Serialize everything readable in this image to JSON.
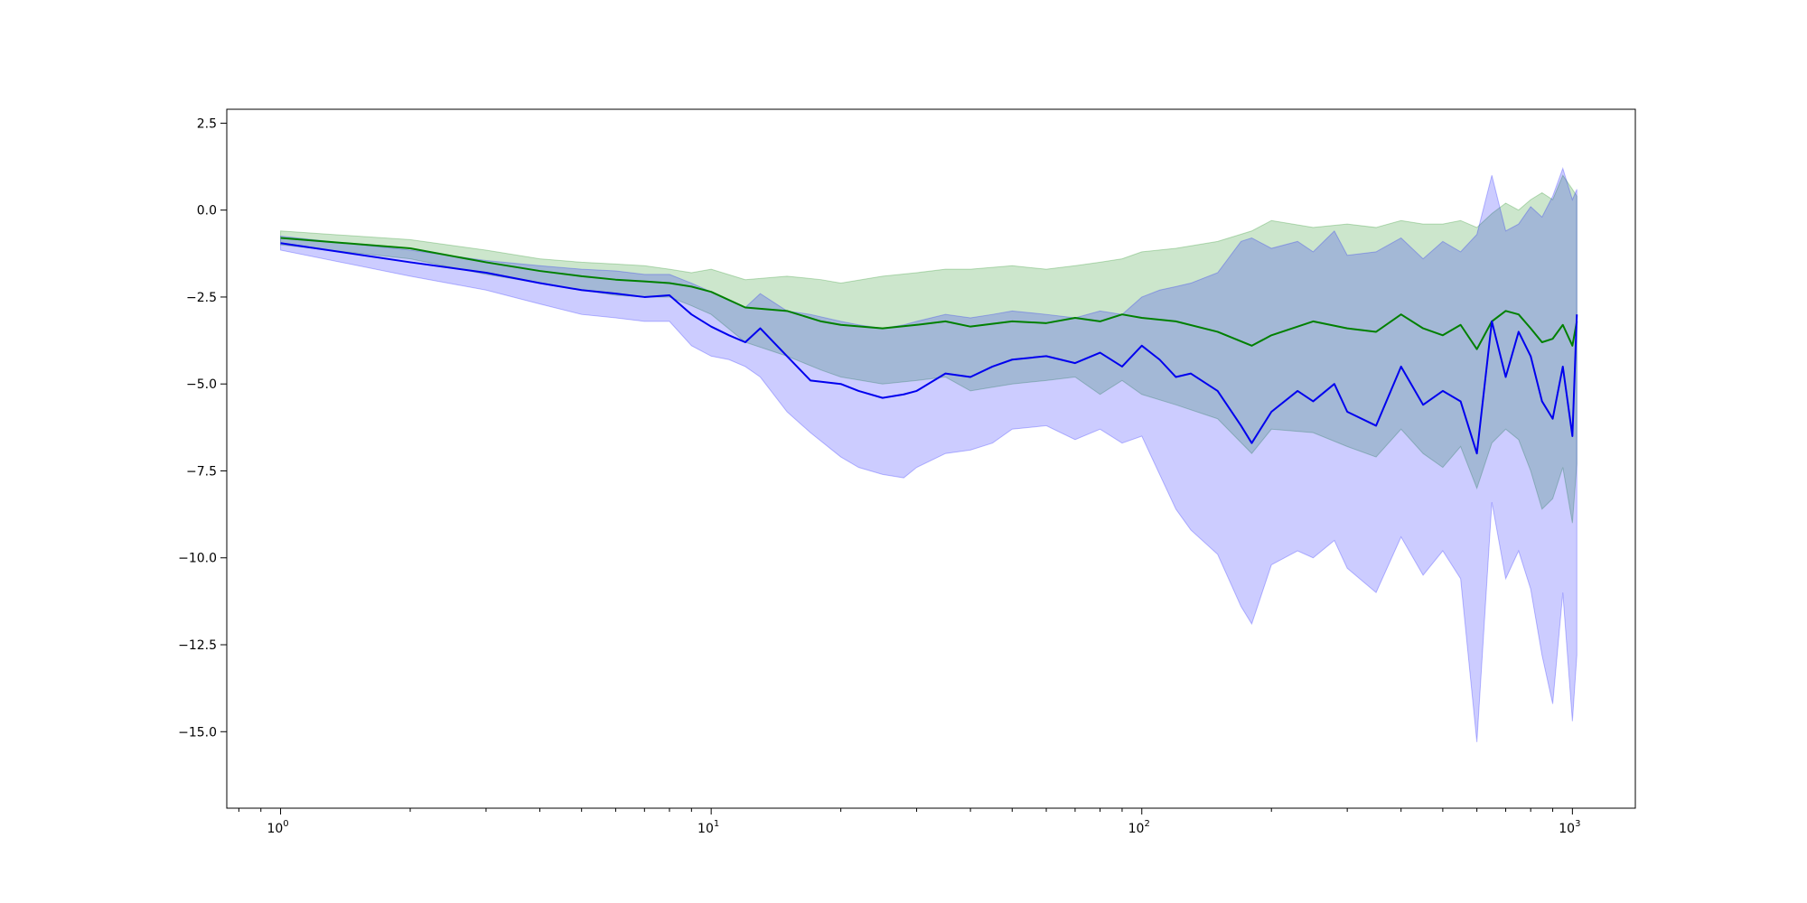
{
  "chart_data": {
    "type": "line",
    "title": "",
    "xlabel": "",
    "ylabel": "",
    "xscale": "log",
    "xlim": [
      0.75,
      1400
    ],
    "ylim": [
      -17.2,
      2.9
    ],
    "grid": false,
    "legend": "none",
    "x_ticks": [
      {
        "base": "10",
        "exp": "0",
        "value": 1
      },
      {
        "base": "10",
        "exp": "1",
        "value": 10
      },
      {
        "base": "10",
        "exp": "2",
        "value": 100
      },
      {
        "base": "10",
        "exp": "3",
        "value": 1000
      }
    ],
    "y_ticks": [
      {
        "label": "2.5",
        "value": 2.5
      },
      {
        "label": "0.0",
        "value": 0.0
      },
      {
        "label": "−2.5",
        "value": -2.5
      },
      {
        "label": "−5.0",
        "value": -5.0
      },
      {
        "label": "−7.5",
        "value": -7.5
      },
      {
        "label": "−10.0",
        "value": -10.0
      },
      {
        "label": "−12.5",
        "value": -12.5
      },
      {
        "label": "−15.0",
        "value": -15.0
      }
    ],
    "series": [
      {
        "color": "#008000",
        "band_color": "#008000",
        "band_opacity": 0.2,
        "x": [
          1,
          2,
          3,
          4,
          5,
          6,
          7,
          8,
          9,
          10,
          12,
          15,
          18,
          20,
          25,
          30,
          35,
          40,
          50,
          60,
          70,
          80,
          90,
          100,
          120,
          150,
          180,
          200,
          250,
          300,
          350,
          400,
          450,
          500,
          550,
          600,
          650,
          700,
          750,
          800,
          850,
          900,
          950,
          1000,
          1024
        ],
        "y": [
          -0.8,
          -1.1,
          -1.5,
          -1.75,
          -1.9,
          -2.0,
          -2.05,
          -2.1,
          -2.2,
          -2.35,
          -2.8,
          -2.9,
          -3.2,
          -3.3,
          -3.4,
          -3.3,
          -3.2,
          -3.35,
          -3.2,
          -3.25,
          -3.1,
          -3.2,
          -3.0,
          -3.1,
          -3.2,
          -3.5,
          -3.9,
          -3.6,
          -3.2,
          -3.4,
          -3.5,
          -3.0,
          -3.4,
          -3.6,
          -3.3,
          -4.0,
          -3.2,
          -2.9,
          -3.0,
          -3.4,
          -3.8,
          -3.7,
          -3.3,
          -3.9,
          -3.2
        ],
        "lower": [
          -1.0,
          -1.4,
          -1.85,
          -2.1,
          -2.3,
          -2.45,
          -2.5,
          -2.5,
          -2.75,
          -3.0,
          -3.8,
          -4.2,
          -4.6,
          -4.8,
          -5.0,
          -4.9,
          -4.8,
          -5.2,
          -5.0,
          -4.9,
          -4.8,
          -5.3,
          -4.9,
          -5.3,
          -5.6,
          -6.0,
          -7.0,
          -6.3,
          -6.4,
          -6.8,
          -7.1,
          -6.3,
          -7.0,
          -7.4,
          -6.8,
          -8.0,
          -6.7,
          -6.3,
          -6.6,
          -7.5,
          -8.6,
          -8.3,
          -7.4,
          -9.0,
          -7.3
        ],
        "upper": [
          -0.6,
          -0.85,
          -1.15,
          -1.4,
          -1.5,
          -1.55,
          -1.6,
          -1.7,
          -1.8,
          -1.7,
          -2.0,
          -1.9,
          -2.0,
          -2.1,
          -1.9,
          -1.8,
          -1.7,
          -1.7,
          -1.6,
          -1.7,
          -1.6,
          -1.5,
          -1.4,
          -1.2,
          -1.1,
          -0.9,
          -0.6,
          -0.3,
          -0.5,
          -0.4,
          -0.5,
          -0.3,
          -0.4,
          -0.4,
          -0.3,
          -0.5,
          -0.1,
          0.2,
          0.0,
          0.3,
          0.5,
          0.3,
          1.0,
          0.6,
          0.4
        ]
      },
      {
        "color": "#0000ee",
        "band_color": "#0000ff",
        "band_opacity": 0.2,
        "x": [
          1,
          2,
          3,
          4,
          5,
          6,
          7,
          8,
          9,
          10,
          11,
          12,
          13,
          15,
          17,
          20,
          22,
          25,
          28,
          30,
          35,
          40,
          45,
          50,
          60,
          70,
          80,
          90,
          100,
          110,
          120,
          130,
          150,
          170,
          180,
          200,
          230,
          250,
          280,
          300,
          350,
          400,
          450,
          500,
          550,
          600,
          650,
          700,
          750,
          800,
          850,
          900,
          950,
          1000,
          1024
        ],
        "y": [
          -0.95,
          -1.5,
          -1.8,
          -2.1,
          -2.3,
          -2.4,
          -2.5,
          -2.45,
          -3.0,
          -3.35,
          -3.6,
          -3.8,
          -3.4,
          -4.2,
          -4.9,
          -5.0,
          -5.2,
          -5.4,
          -5.3,
          -5.2,
          -4.7,
          -4.8,
          -4.5,
          -4.3,
          -4.2,
          -4.4,
          -4.1,
          -4.5,
          -3.9,
          -4.3,
          -4.8,
          -4.7,
          -5.2,
          -6.2,
          -6.7,
          -5.8,
          -5.2,
          -5.5,
          -5.0,
          -5.8,
          -6.2,
          -4.5,
          -5.6,
          -5.2,
          -5.5,
          -7.0,
          -3.2,
          -4.8,
          -3.5,
          -4.2,
          -5.5,
          -6.0,
          -4.5,
          -6.5,
          -3.0
        ],
        "lower": [
          -1.15,
          -1.9,
          -2.3,
          -2.7,
          -3.0,
          -3.1,
          -3.2,
          -3.2,
          -3.9,
          -4.2,
          -4.3,
          -4.5,
          -4.8,
          -5.8,
          -6.4,
          -7.1,
          -7.4,
          -7.6,
          -7.7,
          -7.4,
          -7.0,
          -6.9,
          -6.7,
          -6.3,
          -6.2,
          -6.6,
          -6.3,
          -6.7,
          -6.5,
          -7.6,
          -8.6,
          -9.2,
          -9.9,
          -11.4,
          -11.9,
          -10.2,
          -9.8,
          -10.0,
          -9.5,
          -10.3,
          -11.0,
          -9.4,
          -10.5,
          -9.8,
          -10.6,
          -15.3,
          -8.4,
          -10.6,
          -9.8,
          -10.9,
          -12.8,
          -14.2,
          -11.0,
          -14.7,
          -12.8
        ],
        "upper": [
          -0.75,
          -1.15,
          -1.45,
          -1.6,
          -1.7,
          -1.75,
          -1.85,
          -1.85,
          -2.1,
          -2.35,
          -2.6,
          -2.8,
          -2.4,
          -2.9,
          -3.0,
          -3.2,
          -3.3,
          -3.4,
          -3.3,
          -3.2,
          -3.0,
          -3.1,
          -3.0,
          -2.9,
          -3.0,
          -3.1,
          -2.9,
          -3.0,
          -2.5,
          -2.3,
          -2.2,
          -2.1,
          -1.8,
          -0.9,
          -0.8,
          -1.1,
          -0.9,
          -1.2,
          -0.6,
          -1.3,
          -1.2,
          -0.8,
          -1.4,
          -0.9,
          -1.2,
          -0.7,
          1.0,
          -0.6,
          -0.4,
          0.1,
          -0.2,
          0.4,
          1.2,
          0.3,
          0.6
        ]
      }
    ]
  }
}
